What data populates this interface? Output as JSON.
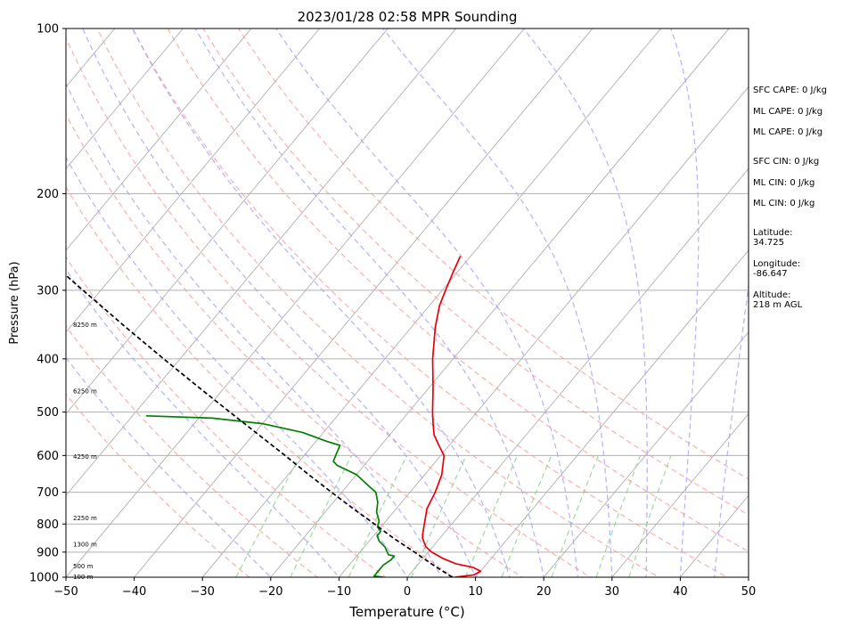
{
  "chart_data": {
    "type": "line",
    "title": "2023/01/28 02:58 MPR Sounding",
    "xlabel": "Temperature (°C)",
    "ylabel": "Pressure (hPa)",
    "xlim": [
      -50,
      50
    ],
    "ylim_hpa": [
      1000,
      100
    ],
    "y_scale": "log",
    "skew": "skew-T",
    "x_ticks": [
      -50,
      -40,
      -30,
      -20,
      -10,
      0,
      10,
      20,
      30,
      40,
      50
    ],
    "x_tick_labels": [
      "−50",
      "−40",
      "−30",
      "−20",
      "−10",
      "0",
      "10",
      "20",
      "30",
      "40",
      "50"
    ],
    "y_ticks": [
      100,
      200,
      300,
      400,
      500,
      600,
      700,
      800,
      900,
      1000
    ],
    "y_tick_labels": [
      "100",
      "200",
      "300",
      "400",
      "500",
      "600",
      "700",
      "800",
      "900",
      "1000"
    ],
    "grid": true,
    "series": [
      {
        "role": "temperature",
        "color": "#e8000b",
        "points": [
          [
            1000,
            7.0
          ],
          [
            990,
            9.5
          ],
          [
            975,
            10.0
          ],
          [
            960,
            8.5
          ],
          [
            945,
            5.5
          ],
          [
            925,
            3.0
          ],
          [
            900,
            0.5
          ],
          [
            880,
            -1.0
          ],
          [
            850,
            -2.5
          ],
          [
            835,
            -3.0
          ],
          [
            800,
            -4.0
          ],
          [
            750,
            -5.5
          ],
          [
            700,
            -6.3
          ],
          [
            650,
            -7.5
          ],
          [
            600,
            -9.5
          ],
          [
            575,
            -11.5
          ],
          [
            550,
            -13.5
          ],
          [
            525,
            -15.0
          ],
          [
            500,
            -16.5
          ],
          [
            450,
            -19.5
          ],
          [
            400,
            -23.0
          ],
          [
            350,
            -26.5
          ],
          [
            320,
            -28.5
          ],
          [
            300,
            -29.5
          ],
          [
            280,
            -30.5
          ],
          [
            260,
            -31.5
          ]
        ]
      },
      {
        "role": "dewpoint",
        "color": "#008000",
        "points": [
          [
            1000,
            -3.5
          ],
          [
            995,
            -5.0
          ],
          [
            975,
            -5.0
          ],
          [
            950,
            -5.0
          ],
          [
            930,
            -4.5
          ],
          [
            915,
            -4.5
          ],
          [
            910,
            -5.5
          ],
          [
            880,
            -7.0
          ],
          [
            860,
            -8.5
          ],
          [
            840,
            -9.5
          ],
          [
            825,
            -9.5
          ],
          [
            810,
            -10.5
          ],
          [
            790,
            -11.0
          ],
          [
            760,
            -12.5
          ],
          [
            730,
            -13.5
          ],
          [
            700,
            -15.0
          ],
          [
            685,
            -16.5
          ],
          [
            650,
            -20.0
          ],
          [
            625,
            -24.0
          ],
          [
            615,
            -25.0
          ],
          [
            595,
            -25.5
          ],
          [
            575,
            -26.0
          ],
          [
            565,
            -28.5
          ],
          [
            545,
            -33.0
          ],
          [
            525,
            -40.0
          ],
          [
            513,
            -48.0
          ],
          [
            508,
            -58.0
          ]
        ]
      },
      {
        "role": "parcel",
        "color": "#000000",
        "dashed": true,
        "points": [
          [
            1000,
            6.6
          ],
          [
            950,
            2.3
          ],
          [
            900,
            -2.0
          ],
          [
            850,
            -6.7
          ],
          [
            800,
            -11.3
          ],
          [
            750,
            -16.3
          ],
          [
            700,
            -21.5
          ],
          [
            650,
            -27.0
          ],
          [
            600,
            -32.8
          ],
          [
            550,
            -39.2
          ],
          [
            500,
            -46.2
          ],
          [
            450,
            -53.9
          ],
          [
            400,
            -62.4
          ],
          [
            350,
            -71.9
          ],
          [
            300,
            -82.6
          ],
          [
            260,
            -92.5
          ]
        ]
      }
    ],
    "height_labels": [
      {
        "text": "100 m",
        "p": 1000
      },
      {
        "text": "500 m",
        "p": 957
      },
      {
        "text": "1300 m",
        "p": 873
      },
      {
        "text": "2250 m",
        "p": 782
      },
      {
        "text": "4250 m",
        "p": 604
      },
      {
        "text": "6250 m",
        "p": 459
      },
      {
        "text": "8250 m",
        "p": 347
      }
    ],
    "background_lines": {
      "isotherms": {
        "color": "#b0b0b0",
        "values": [
          -120,
          -110,
          -100,
          -90,
          -80,
          -70,
          -60,
          -50,
          -40,
          -30,
          -20,
          -10,
          0,
          10,
          20,
          30,
          40,
          50
        ]
      },
      "dry_adiabats": {
        "color": "#ff9a9a",
        "theta_K": [
          250,
          260,
          270,
          280,
          290,
          300,
          310,
          320,
          330,
          340,
          350
        ]
      },
      "moist_adiabats": {
        "color": "#9f9fff",
        "start_C": [
          -20,
          -10,
          0,
          5,
          10,
          15,
          20,
          25,
          30,
          35,
          40,
          45
        ]
      },
      "mixing_ratio": {
        "color": "#8fd48f",
        "values_gkg": [
          0.5,
          1,
          2,
          4,
          7,
          10,
          16,
          24,
          32
        ]
      }
    },
    "annotations": [
      "SFC CAPE: 0 J/kg",
      "ML CAPE: 0 J/kg",
      "ML CAPE: 0 J/kg",
      "SFC CIN: 0 J/kg",
      "ML CIN: 0 J/kg",
      "ML CIN: 0 J/kg",
      "Latitude:",
      "34.725",
      "Longitude:",
      "-86.647",
      "Altitude:",
      "218 m AGL"
    ]
  }
}
